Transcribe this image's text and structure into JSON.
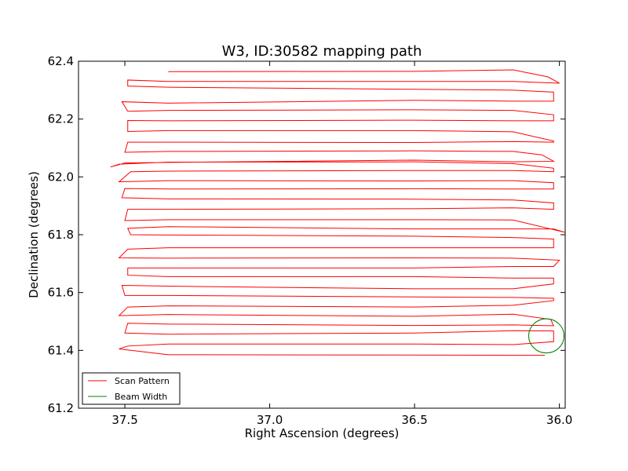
{
  "chart_data": {
    "type": "line",
    "title": "W3, ID:30582 mapping path",
    "xlabel": "Right Ascension (degrees)",
    "ylabel": "Declination (degrees)",
    "xlim": [
      37.66,
      35.98
    ],
    "ylim": [
      61.2,
      62.4
    ],
    "x_axis_inverted": true,
    "xticks": [
      37.5,
      37.0,
      36.5,
      36.0
    ],
    "xtick_labels": [
      "37.5",
      "37.0",
      "36.5",
      "36.0"
    ],
    "yticks": [
      61.2,
      61.4,
      61.6,
      61.8,
      62.0,
      62.2,
      62.4
    ],
    "ytick_labels": [
      "61.2",
      "61.4",
      "61.6",
      "61.8",
      "62.0",
      "62.2",
      "62.4"
    ],
    "grid": false,
    "legend": {
      "placement": "lower-left",
      "entries": [
        {
          "label": "Scan Pattern",
          "color": "#ff0000"
        },
        {
          "label": "Beam Width",
          "color": "#008000"
        }
      ]
    },
    "series": [
      {
        "name": "Scan Pattern",
        "color": "#ff0000",
        "points": [
          [
            36.05,
            61.383
          ],
          [
            37.35,
            61.385
          ],
          [
            37.52,
            61.405
          ],
          [
            37.49,
            61.415
          ],
          [
            37.35,
            61.422
          ],
          [
            36.5,
            61.422
          ],
          [
            36.16,
            61.42
          ],
          [
            36.02,
            61.43
          ],
          [
            36.02,
            61.467
          ],
          [
            36.16,
            61.468
          ],
          [
            36.5,
            61.46
          ],
          [
            37.35,
            61.456
          ],
          [
            37.5,
            61.46
          ],
          [
            37.49,
            61.494
          ],
          [
            37.35,
            61.491
          ],
          [
            36.5,
            61.486
          ],
          [
            36.16,
            61.488
          ],
          [
            36.02,
            61.485
          ],
          [
            36.03,
            61.507
          ],
          [
            36.16,
            61.525
          ],
          [
            36.5,
            61.518
          ],
          [
            37.35,
            61.524
          ],
          [
            37.52,
            61.52
          ],
          [
            37.49,
            61.55
          ],
          [
            37.35,
            61.554
          ],
          [
            36.5,
            61.55
          ],
          [
            36.16,
            61.556
          ],
          [
            36.02,
            61.572
          ],
          [
            36.02,
            61.58
          ],
          [
            36.16,
            61.583
          ],
          [
            36.5,
            61.585
          ],
          [
            37.35,
            61.59
          ],
          [
            37.5,
            61.59
          ],
          [
            37.51,
            61.625
          ],
          [
            37.35,
            61.622
          ],
          [
            36.5,
            61.613
          ],
          [
            36.16,
            61.613
          ],
          [
            36.02,
            61.63
          ],
          [
            36.02,
            61.65
          ],
          [
            36.16,
            61.65
          ],
          [
            36.5,
            61.655
          ],
          [
            37.35,
            61.655
          ],
          [
            37.49,
            61.66
          ],
          [
            37.49,
            61.685
          ],
          [
            37.35,
            61.685
          ],
          [
            36.5,
            61.685
          ],
          [
            36.16,
            61.69
          ],
          [
            36.02,
            61.69
          ],
          [
            36.0,
            61.712
          ],
          [
            36.16,
            61.719
          ],
          [
            36.5,
            61.72
          ],
          [
            37.35,
            61.719
          ],
          [
            37.52,
            61.72
          ],
          [
            37.49,
            61.75
          ],
          [
            37.35,
            61.755
          ],
          [
            36.5,
            61.755
          ],
          [
            36.16,
            61.755
          ],
          [
            36.02,
            61.755
          ],
          [
            36.02,
            61.785
          ],
          [
            36.16,
            61.79
          ],
          [
            36.5,
            61.795
          ],
          [
            37.35,
            61.799
          ],
          [
            37.48,
            61.8
          ],
          [
            37.49,
            61.822
          ],
          [
            37.35,
            61.828
          ],
          [
            36.5,
            61.82
          ],
          [
            36.16,
            61.82
          ],
          [
            36.02,
            61.82
          ],
          [
            35.98,
            61.808
          ],
          [
            36.16,
            61.851
          ],
          [
            36.5,
            61.852
          ],
          [
            37.35,
            61.852
          ],
          [
            37.5,
            61.849
          ],
          [
            37.49,
            61.888
          ],
          [
            37.35,
            61.888
          ],
          [
            36.5,
            61.89
          ],
          [
            36.16,
            61.893
          ],
          [
            36.02,
            61.888
          ],
          [
            36.02,
            61.91
          ],
          [
            36.16,
            61.92
          ],
          [
            36.5,
            61.923
          ],
          [
            37.35,
            61.924
          ],
          [
            37.51,
            61.928
          ],
          [
            37.5,
            61.96
          ],
          [
            37.35,
            61.958
          ],
          [
            36.5,
            61.959
          ],
          [
            36.16,
            61.958
          ],
          [
            36.02,
            61.958
          ],
          [
            36.02,
            61.98
          ],
          [
            36.16,
            61.987
          ],
          [
            36.5,
            61.986
          ],
          [
            37.35,
            61.987
          ],
          [
            37.52,
            61.983
          ],
          [
            37.48,
            62.018
          ],
          [
            37.35,
            62.02
          ],
          [
            36.5,
            62.022
          ],
          [
            36.16,
            62.022
          ],
          [
            36.02,
            62.018
          ],
          [
            36.02,
            62.03
          ],
          [
            36.16,
            62.046
          ],
          [
            36.5,
            62.052
          ],
          [
            37.35,
            62.051
          ],
          [
            37.52,
            62.044
          ],
          [
            37.55,
            62.034
          ],
          [
            37.5,
            62.048
          ],
          [
            37.35,
            62.05
          ],
          [
            36.5,
            62.058
          ],
          [
            36.16,
            62.052
          ],
          [
            36.02,
            62.054
          ],
          [
            36.06,
            62.076
          ],
          [
            36.16,
            62.088
          ],
          [
            36.5,
            62.09
          ],
          [
            37.35,
            62.088
          ],
          [
            37.5,
            62.085
          ],
          [
            37.49,
            62.12
          ],
          [
            37.35,
            62.12
          ],
          [
            36.5,
            62.119
          ],
          [
            36.16,
            62.122
          ],
          [
            36.02,
            62.12
          ],
          [
            36.02,
            62.124
          ],
          [
            36.16,
            62.156
          ],
          [
            36.5,
            62.16
          ],
          [
            37.35,
            62.16
          ],
          [
            37.49,
            62.157
          ],
          [
            37.49,
            62.195
          ],
          [
            37.35,
            62.194
          ],
          [
            36.5,
            62.196
          ],
          [
            36.16,
            62.194
          ],
          [
            36.02,
            62.194
          ],
          [
            36.02,
            62.215
          ],
          [
            36.16,
            62.23
          ],
          [
            36.5,
            62.232
          ],
          [
            37.35,
            62.23
          ],
          [
            37.49,
            62.227
          ],
          [
            37.51,
            62.26
          ],
          [
            37.35,
            62.255
          ],
          [
            36.5,
            62.265
          ],
          [
            36.16,
            62.262
          ],
          [
            36.02,
            62.262
          ],
          [
            36.02,
            62.293
          ],
          [
            36.16,
            62.3
          ],
          [
            36.5,
            62.303
          ],
          [
            37.35,
            62.31
          ],
          [
            37.49,
            62.314
          ],
          [
            37.49,
            62.335
          ],
          [
            37.35,
            62.33
          ],
          [
            36.5,
            62.33
          ],
          [
            36.16,
            62.33
          ],
          [
            36.0,
            62.324
          ],
          [
            36.04,
            62.346
          ],
          [
            36.16,
            62.37
          ],
          [
            36.5,
            62.365
          ],
          [
            37.35,
            62.364
          ]
        ]
      },
      {
        "name": "Beam Width",
        "color": "#008000",
        "shape": "circle",
        "center": [
          36.045,
          61.45
        ],
        "radius_deg_ra": 0.061,
        "radius_deg_dec": 0.059
      }
    ]
  }
}
